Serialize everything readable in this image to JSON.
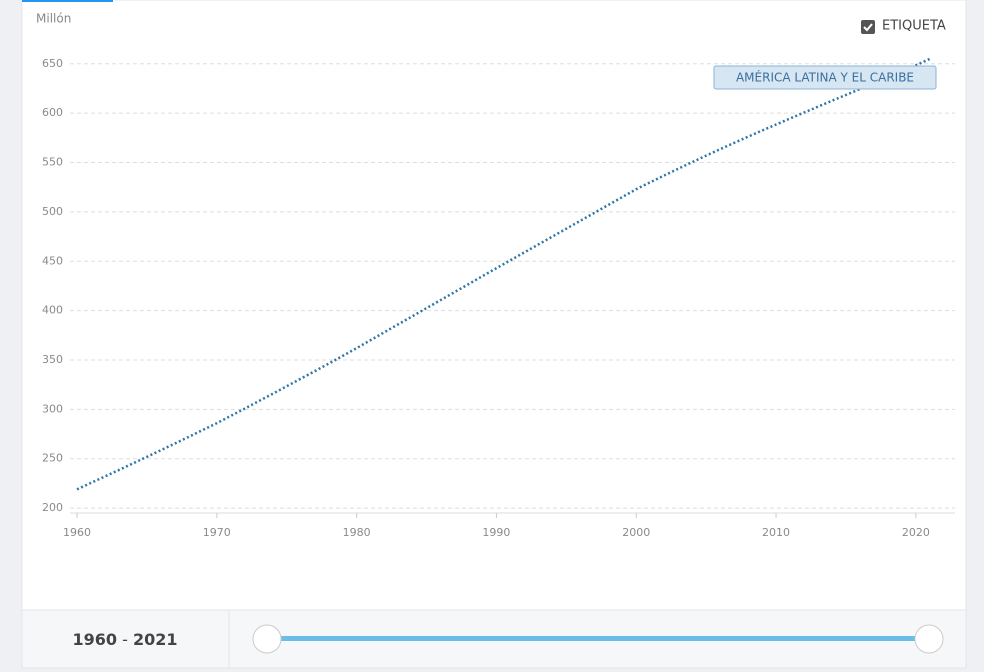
{
  "chart_data": {
    "type": "line",
    "y_unit": "Millón",
    "x": [
      1960,
      1961,
      1962,
      1963,
      1964,
      1965,
      1966,
      1967,
      1968,
      1969,
      1970,
      1971,
      1972,
      1973,
      1974,
      1975,
      1976,
      1977,
      1978,
      1979,
      1980,
      1981,
      1982,
      1983,
      1984,
      1985,
      1986,
      1987,
      1988,
      1989,
      1990,
      1991,
      1992,
      1993,
      1994,
      1995,
      1996,
      1997,
      1998,
      1999,
      2000,
      2001,
      2002,
      2003,
      2004,
      2005,
      2006,
      2007,
      2008,
      2009,
      2010,
      2011,
      2012,
      2013,
      2014,
      2015,
      2016,
      2017,
      2018,
      2019,
      2020,
      2021
    ],
    "series": [
      {
        "name": "AMÉRICA LATINA Y EL CARIBE",
        "color": "#2e75a8",
        "values": [
          219,
          225.5,
          232,
          238.6,
          245.2,
          251.9,
          258.6,
          265.4,
          272.2,
          279.1,
          286,
          293.4,
          300.8,
          308.3,
          315.8,
          323.4,
          331,
          338.6,
          346.3,
          354.1,
          362,
          370.1,
          378.2,
          386.3,
          394.4,
          402.5,
          410.6,
          418.7,
          426.8,
          434.9,
          443,
          451,
          459,
          467,
          475,
          483,
          491,
          499,
          507,
          515,
          523,
          530,
          536.9,
          543.7,
          550.4,
          557,
          563.5,
          569.9,
          576.2,
          582.4,
          588.5,
          594.6,
          600.6,
          606.6,
          612.6,
          618.5,
          624.4,
          630.3,
          636.2,
          642.1,
          648.5,
          655
        ]
      }
    ],
    "xlim": [
      1959.5,
      2022.8
    ],
    "xticks": [
      1960,
      1970,
      1980,
      1990,
      2000,
      2010,
      2020
    ],
    "ylim": [
      195,
      665
    ],
    "yticks": [
      200,
      250,
      300,
      350,
      400,
      450,
      500,
      550,
      600,
      650
    ],
    "grid": true
  },
  "controls": {
    "label_toggle": "ETIQUETA",
    "range_start": "1960",
    "range_separator": "-",
    "range_end": "2021"
  }
}
